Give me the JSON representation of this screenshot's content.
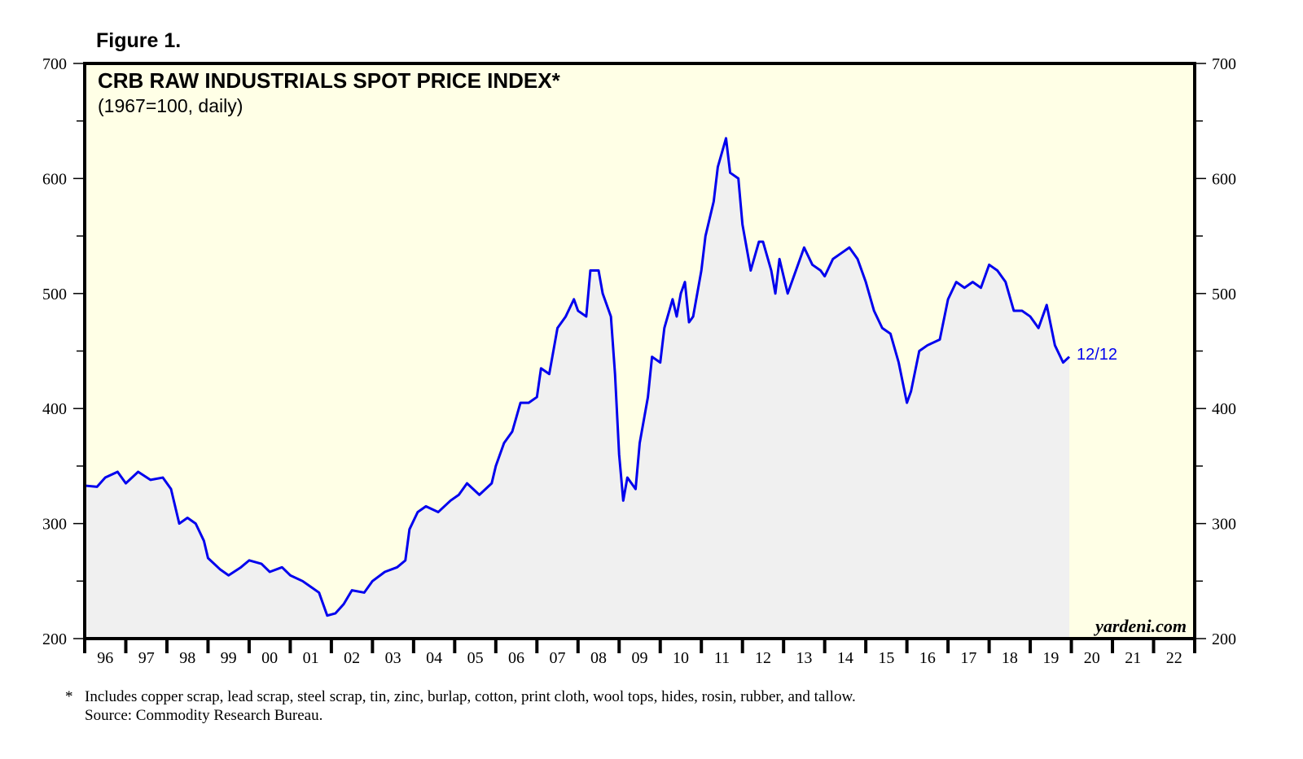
{
  "figure_label": "Figure 1.",
  "watermark": "yardeni.com",
  "footnote": {
    "marker": "*",
    "text": "Includes copper scrap, lead scrap, steel scrap, tin, zinc, burlap, cotton, print cloth, wool tops, hides, rosin, rubber, and tallow.",
    "source": "Source: Commodity Research Bureau."
  },
  "colors": {
    "line": "#0000ee",
    "plot_bg": "#ffffe6",
    "fill": "#f0f0f0",
    "label": "#0000ee"
  },
  "chart_data": {
    "type": "area",
    "title": "CRB RAW INDUSTRIALS SPOT PRICE INDEX*",
    "subtitle": "(1967=100, daily)",
    "xlabel": "",
    "ylabel": "",
    "xlim": [
      1996,
      2023
    ],
    "ylim": [
      200,
      700
    ],
    "y_ticks": [
      200,
      300,
      400,
      500,
      600,
      700
    ],
    "y_tick_labels": [
      "200",
      "300",
      "400",
      "500",
      "600",
      "700"
    ],
    "x_tick_labels": [
      "96",
      "97",
      "98",
      "99",
      "00",
      "01",
      "02",
      "03",
      "04",
      "05",
      "06",
      "07",
      "08",
      "09",
      "10",
      "11",
      "12",
      "13",
      "14",
      "15",
      "16",
      "17",
      "18",
      "19",
      "20",
      "21",
      "22"
    ],
    "end_label": "12/12",
    "grid": false,
    "series": [
      {
        "name": "CRB Raw Industrials",
        "x": [
          1996.0,
          1996.3,
          1996.5,
          1996.8,
          1997.0,
          1997.3,
          1997.6,
          1997.9,
          1998.1,
          1998.3,
          1998.5,
          1998.7,
          1998.9,
          1999.0,
          1999.3,
          1999.5,
          1999.8,
          2000.0,
          2000.3,
          2000.5,
          2000.8,
          2001.0,
          2001.3,
          2001.5,
          2001.7,
          2001.9,
          2002.1,
          2002.3,
          2002.5,
          2002.8,
          2003.0,
          2003.3,
          2003.6,
          2003.8,
          2003.9,
          2004.1,
          2004.3,
          2004.6,
          2004.9,
          2005.1,
          2005.3,
          2005.6,
          2005.9,
          2006.0,
          2006.2,
          2006.4,
          2006.6,
          2006.8,
          2007.0,
          2007.1,
          2007.3,
          2007.5,
          2007.7,
          2007.9,
          2008.0,
          2008.2,
          2008.3,
          2008.5,
          2008.6,
          2008.8,
          2008.9,
          2009.0,
          2009.1,
          2009.2,
          2009.4,
          2009.5,
          2009.7,
          2009.8,
          2010.0,
          2010.1,
          2010.3,
          2010.4,
          2010.5,
          2010.6,
          2010.7,
          2010.8,
          2011.0,
          2011.1,
          2011.3,
          2011.4,
          2011.6,
          2011.7,
          2011.9,
          2012.0,
          2012.1,
          2012.2,
          2012.4,
          2012.5,
          2012.7,
          2012.8,
          2012.9,
          2013.1,
          2013.3,
          2013.5,
          2013.7,
          2013.9,
          2014.0,
          2014.2,
          2014.4,
          2014.6,
          2014.8,
          2015.0,
          2015.2,
          2015.4,
          2015.6,
          2015.8,
          2016.0,
          2016.1,
          2016.3,
          2016.5,
          2016.8,
          2017.0,
          2017.2,
          2017.4,
          2017.6,
          2017.8,
          2018.0,
          2018.2,
          2018.4,
          2018.6,
          2018.8,
          2019.0,
          2019.2,
          2019.4,
          2019.6,
          2019.8,
          2019.95
        ],
        "values": [
          333,
          332,
          340,
          345,
          335,
          345,
          338,
          340,
          330,
          300,
          305,
          300,
          285,
          270,
          260,
          255,
          262,
          268,
          265,
          258,
          262,
          255,
          250,
          245,
          240,
          220,
          222,
          230,
          242,
          240,
          250,
          258,
          262,
          268,
          295,
          310,
          315,
          310,
          320,
          325,
          335,
          325,
          335,
          350,
          370,
          380,
          405,
          405,
          410,
          435,
          430,
          470,
          480,
          495,
          485,
          480,
          520,
          520,
          500,
          480,
          430,
          360,
          320,
          340,
          330,
          370,
          410,
          445,
          440,
          470,
          495,
          480,
          500,
          510,
          475,
          480,
          520,
          550,
          580,
          610,
          635,
          605,
          600,
          560,
          540,
          520,
          545,
          545,
          520,
          500,
          530,
          500,
          520,
          540,
          525,
          520,
          515,
          530,
          535,
          540,
          530,
          510,
          485,
          470,
          465,
          440,
          405,
          415,
          450,
          455,
          460,
          495,
          510,
          505,
          510,
          505,
          525,
          520,
          510,
          485,
          485,
          480,
          470,
          490,
          455,
          440,
          445
        ]
      }
    ]
  }
}
